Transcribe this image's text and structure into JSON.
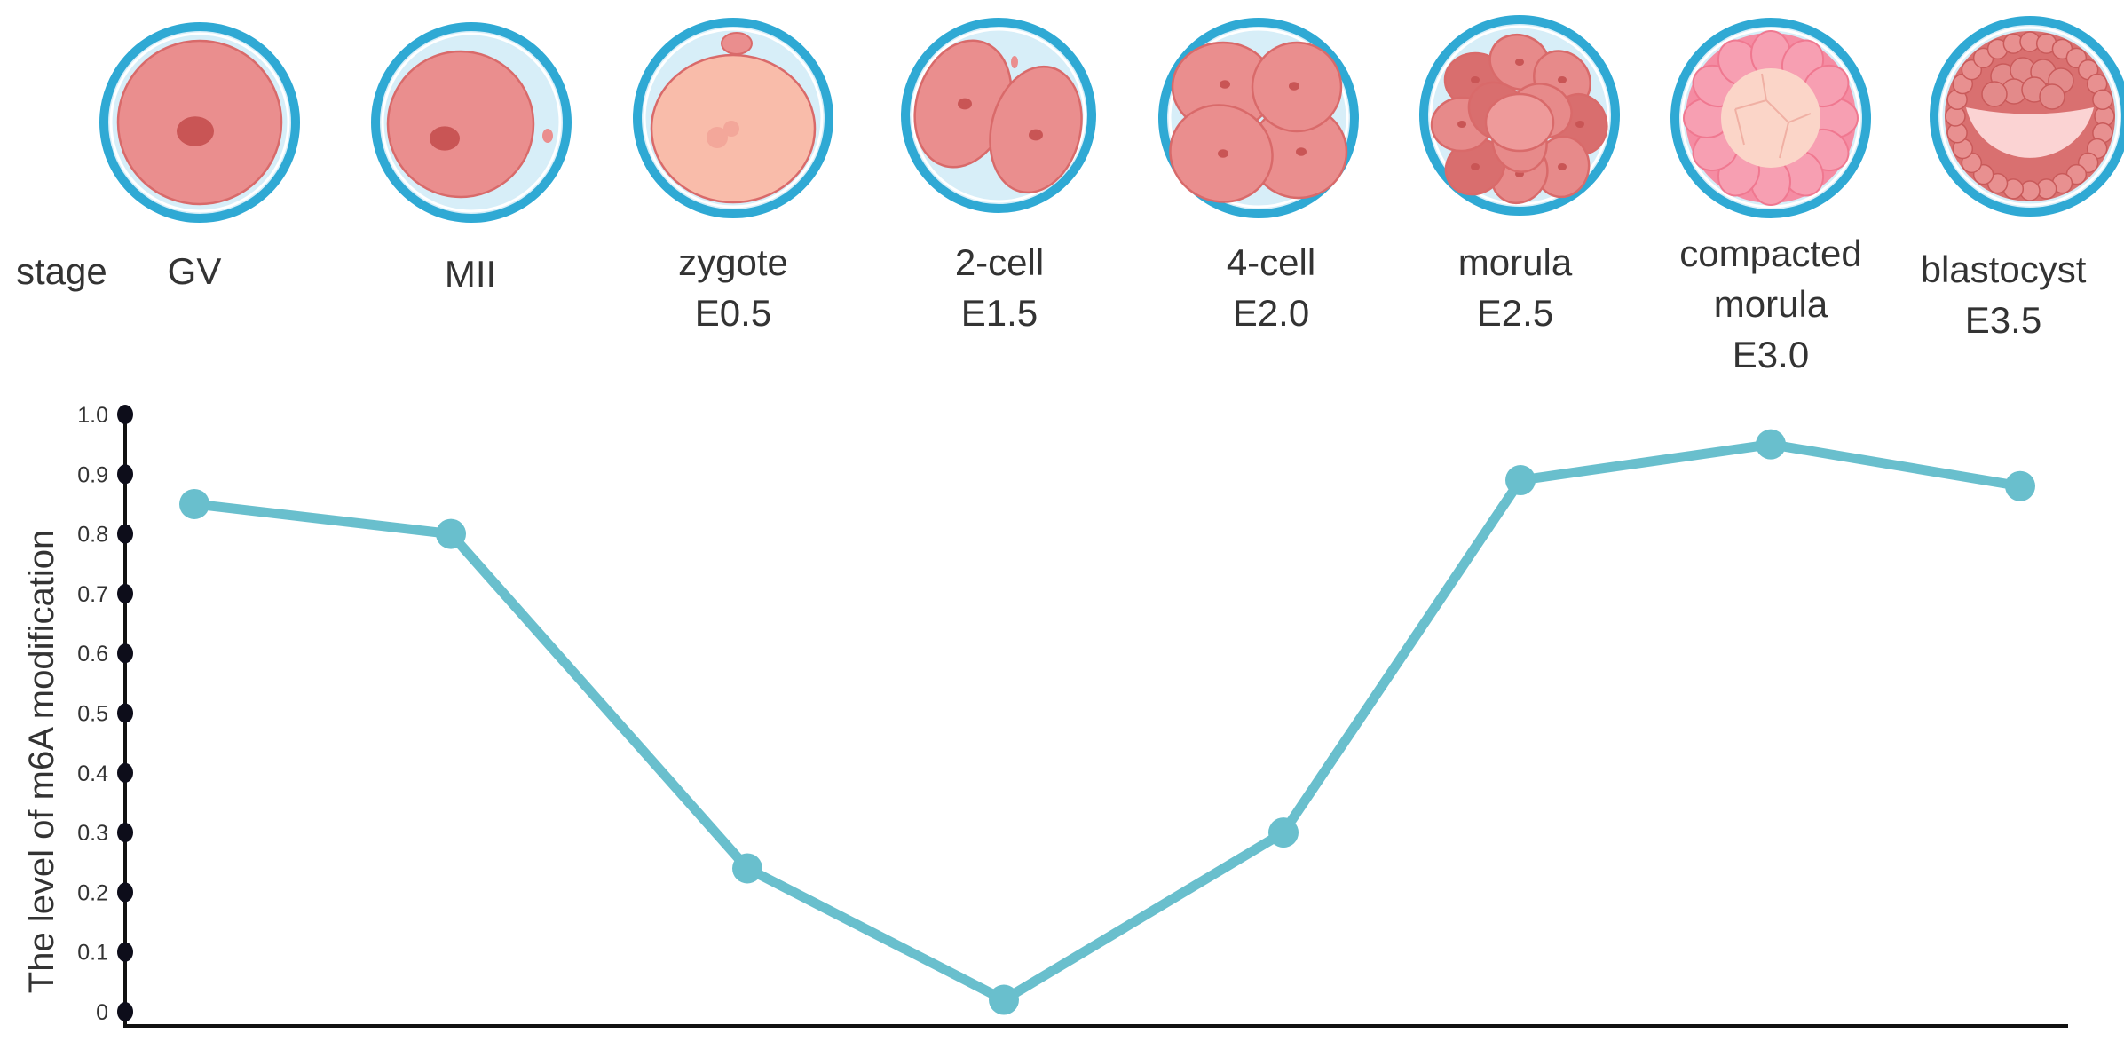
{
  "stage_label": "stage",
  "stages": [
    {
      "id": "gv",
      "lines": [
        "GV"
      ]
    },
    {
      "id": "mii",
      "lines": [
        "MII"
      ]
    },
    {
      "id": "zygote",
      "lines": [
        "zygote",
        "E0.5"
      ]
    },
    {
      "id": "2cell",
      "lines": [
        "2-cell",
        "E1.5"
      ]
    },
    {
      "id": "4cell",
      "lines": [
        "4-cell",
        "E2.0"
      ]
    },
    {
      "id": "morula",
      "lines": [
        "morula",
        "E2.5"
      ]
    },
    {
      "id": "compacted",
      "lines": [
        "compacted",
        "morula",
        "E3.0"
      ]
    },
    {
      "id": "blastocyst",
      "lines": [
        "blastocyst",
        "E3.5"
      ]
    }
  ],
  "chart_data": {
    "type": "line",
    "categories": [
      "GV",
      "MII",
      "zygote E0.5",
      "2-cell E1.5",
      "4-cell E2.0",
      "morula E2.5",
      "compacted morula E3.0",
      "blastocyst E3.5"
    ],
    "series": [
      {
        "values": [
          0.85,
          0.8,
          0.24,
          0.02,
          0.3,
          0.89,
          0.95,
          0.88
        ]
      }
    ],
    "ylabel": "The level of m6A modification",
    "ylim": [
      0,
      1.0
    ],
    "yticks": [
      "0",
      "0.1",
      "0.2",
      "0.3",
      "0.4",
      "0.5",
      "0.6",
      "0.7",
      "0.8",
      "0.9",
      "1.0"
    ],
    "line_color": "#69bfcd",
    "grid": false
  },
  "colors": {
    "zona_outer": "#2fa9d4",
    "zona_inner": "#d7eef8",
    "cell": "#ea8e8e",
    "cell_edge": "#d96a6a",
    "nucleus": "#c95555",
    "zygote_cell": "#f9bcaa",
    "compact_outer": "#f58ca3",
    "compact_inner": "#fbd5c8",
    "blast_cavity": "#fbd3d3"
  }
}
